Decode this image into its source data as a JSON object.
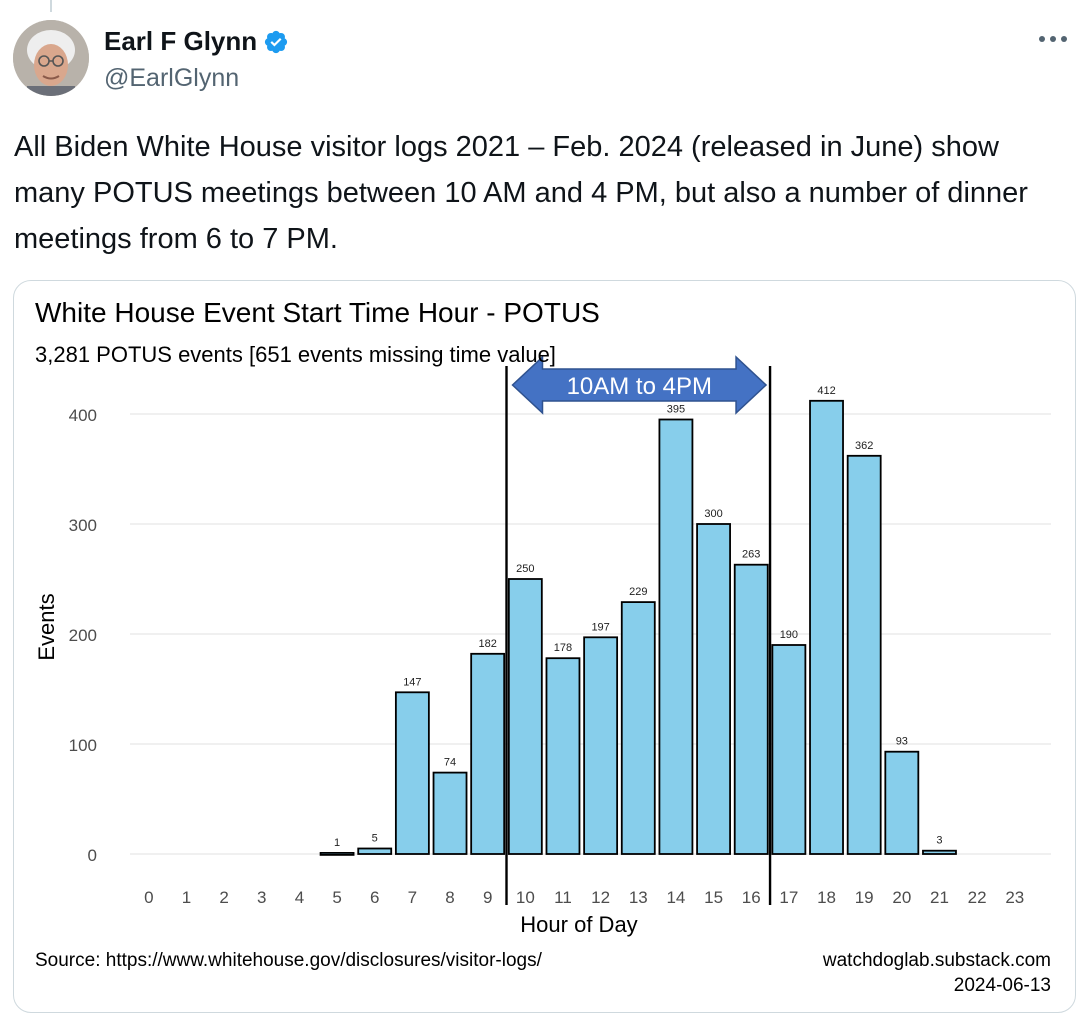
{
  "tweet": {
    "author_name": "Earl F Glynn",
    "handle": "@EarlGlynn",
    "text": "All Biden White House visitor logs 2021 – Feb. 2024 (released in June) show many POTUS meetings between 10 AM and 4 PM, but also a number of dinner meetings from 6 to 7 PM.",
    "verified": true
  },
  "icons": {
    "verified": "verified-badge-icon",
    "more": "more-options-icon"
  },
  "colors": {
    "verified_blue": "#1d9bf0",
    "bar_fill": "#87ceeb",
    "arrow_fill": "#4472c4"
  },
  "chart_data": {
    "type": "bar",
    "title": "White House Event Start Time Hour - POTUS",
    "subtitle": "3,281 POTUS events [651 events missing time value]",
    "xlabel": "Hour of Day",
    "ylabel": "Events",
    "categories": [
      "0",
      "1",
      "2",
      "3",
      "4",
      "5",
      "6",
      "7",
      "8",
      "9",
      "10",
      "11",
      "12",
      "13",
      "14",
      "15",
      "16",
      "17",
      "18",
      "19",
      "20",
      "21",
      "22",
      "23"
    ],
    "values": [
      0,
      0,
      0,
      0,
      0,
      1,
      5,
      147,
      74,
      182,
      250,
      178,
      197,
      229,
      395,
      300,
      263,
      190,
      412,
      362,
      93,
      3,
      0,
      0
    ],
    "value_labels": [
      "",
      "",
      "",
      "",
      "",
      "1",
      "5",
      "147",
      "74",
      "182",
      "250",
      "178",
      "197",
      "229",
      "395",
      "300",
      "263",
      "190",
      "412",
      "362",
      "93",
      "3",
      "",
      ""
    ],
    "yticks": [
      "0",
      "100",
      "200",
      "300",
      "400"
    ],
    "ylim": [
      0,
      440
    ],
    "grid": true,
    "annotation": {
      "text": "10AM to 4PM",
      "from_hour": 9.5,
      "to_hour": 16.5
    },
    "source": "Source: https://www.whitehouse.gov/disclosures/visitor-logs/",
    "credit": "watchdoglab.substack.com",
    "date": "2024-06-13"
  }
}
